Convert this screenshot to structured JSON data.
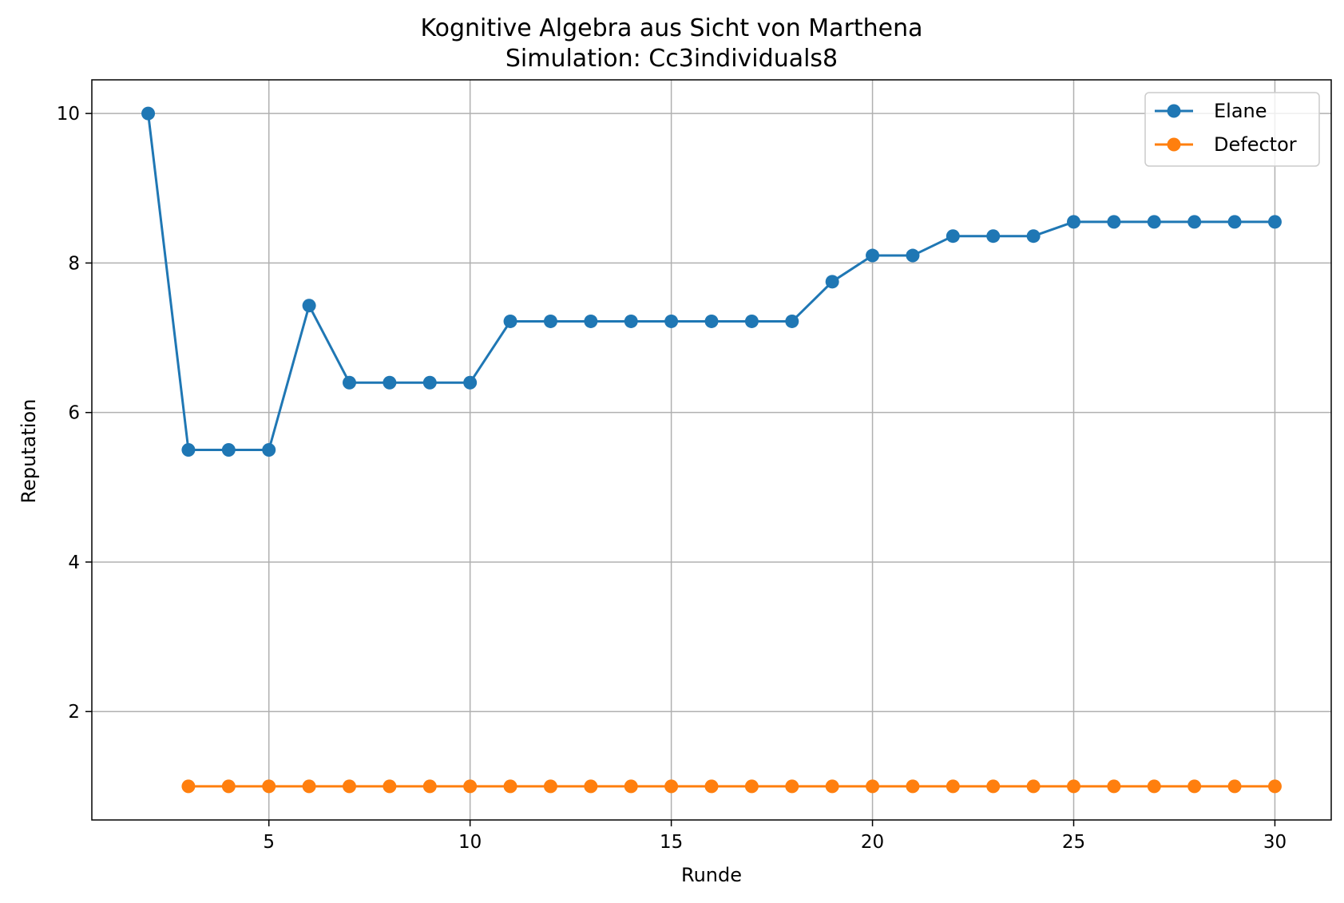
{
  "chart_data": {
    "type": "line",
    "title": "Kognitive Algebra aus Sicht von Marthena",
    "subtitle": "Simulation: Cc3individuals8",
    "xlabel": "Runde",
    "ylabel": "Reputation",
    "xlim": [
      0.6,
      31.4
    ],
    "ylim": [
      0.55,
      10.45
    ],
    "xticks": [
      5,
      10,
      15,
      20,
      25,
      30
    ],
    "yticks": [
      2,
      4,
      6,
      8,
      10
    ],
    "grid": true,
    "legend_position": "top-right",
    "series": [
      {
        "name": "Elane",
        "color": "#1f77b4",
        "x": [
          2,
          3,
          4,
          5,
          6,
          7,
          8,
          9,
          10,
          11,
          12,
          13,
          14,
          15,
          16,
          17,
          18,
          19,
          20,
          21,
          22,
          23,
          24,
          25,
          26,
          27,
          28,
          29,
          30
        ],
        "y": [
          10,
          5.5,
          5.5,
          5.5,
          7.43,
          6.4,
          6.4,
          6.4,
          6.4,
          7.22,
          7.22,
          7.22,
          7.22,
          7.22,
          7.22,
          7.22,
          7.22,
          7.75,
          8.1,
          8.1,
          8.36,
          8.36,
          8.36,
          8.55,
          8.55,
          8.55,
          8.55,
          8.55,
          8.55
        ]
      },
      {
        "name": "Defector",
        "color": "#ff7f0e",
        "x": [
          3,
          4,
          5,
          6,
          7,
          8,
          9,
          10,
          11,
          12,
          13,
          14,
          15,
          16,
          17,
          18,
          19,
          20,
          21,
          22,
          23,
          24,
          25,
          26,
          27,
          28,
          29,
          30
        ],
        "y": [
          1,
          1,
          1,
          1,
          1,
          1,
          1,
          1,
          1,
          1,
          1,
          1,
          1,
          1,
          1,
          1,
          1,
          1,
          1,
          1,
          1,
          1,
          1,
          1,
          1,
          1,
          1,
          1
        ]
      }
    ]
  }
}
